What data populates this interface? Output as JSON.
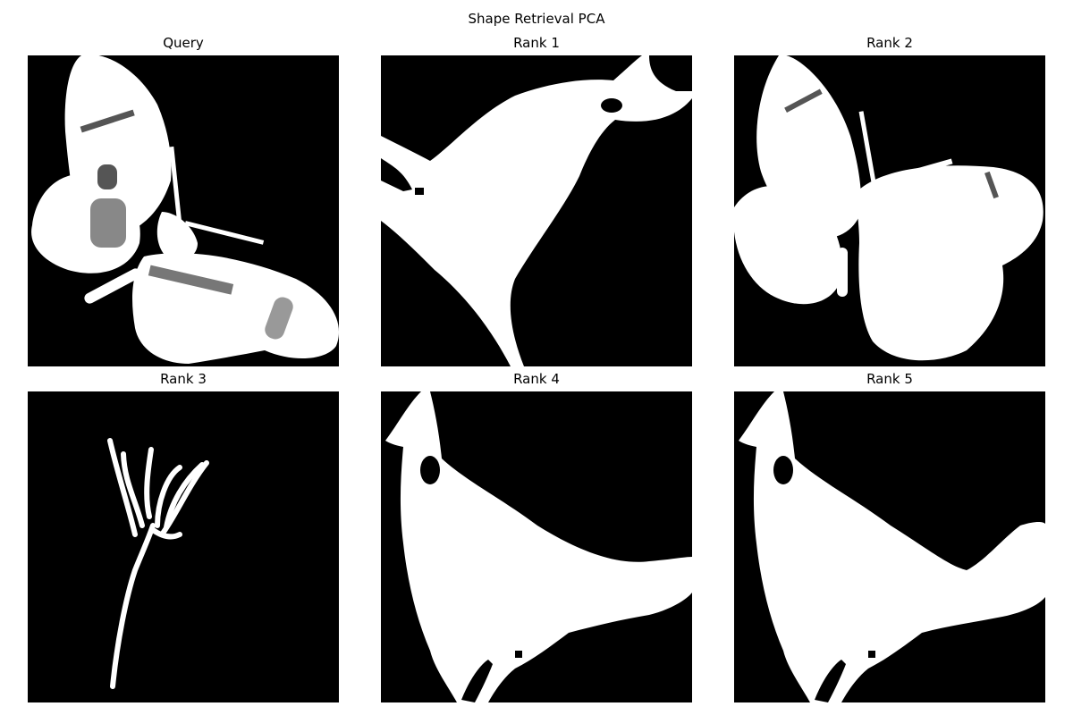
{
  "figure": {
    "title": "Shape Retrieval PCA"
  },
  "panels": [
    {
      "title": "Query",
      "icon": "butterfly-silhouette"
    },
    {
      "title": "Rank 1",
      "icon": "bird-head-silhouette"
    },
    {
      "title": "Rank 2",
      "icon": "butterfly-silhouette"
    },
    {
      "title": "Rank 3",
      "icon": "branch-stick-silhouette"
    },
    {
      "title": "Rank 4",
      "icon": "bird-silhouette"
    },
    {
      "title": "Rank 5",
      "icon": "bird-silhouette"
    }
  ],
  "colors": {
    "background": "#ffffff",
    "image_background": "#000000",
    "shape": "#ffffff",
    "texture": "#555555"
  }
}
